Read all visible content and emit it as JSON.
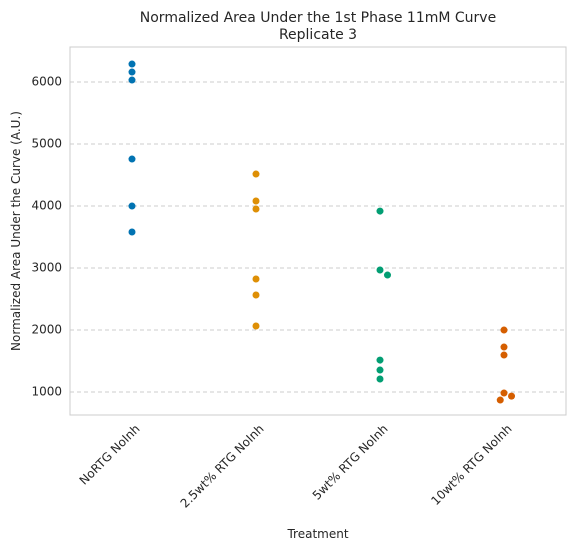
{
  "chart_data": {
    "type": "swarm",
    "title": "Normalized Area Under the 1st Phase 11mM Curve",
    "subtitle": "Replicate 3",
    "x_label": "Treatment",
    "y_label": "Normalized Area Under the Curve (A.U.)",
    "categories": [
      "NoRTG NoInh",
      "2.5wt% RTG NoInh",
      "5wt% RTG NoInh",
      "10wt% RTG NoInh"
    ],
    "colors": [
      "#0173b2",
      "#de8f05",
      "#029e73",
      "#d55e00"
    ],
    "values": [
      [
        6290,
        6161,
        6032,
        4758,
        4000,
        3581
      ],
      [
        4516,
        4081,
        3952,
        2823,
        2565,
        2065
      ],
      [
        3919,
        2968,
        2887,
        1516,
        1355,
        1210
      ],
      [
        2000,
        1726,
        1597,
        984,
        935,
        871
      ]
    ],
    "ylim": [
      630,
      6565
    ],
    "yticks": [
      1000,
      2000,
      3000,
      4000,
      5000,
      6000
    ],
    "grid": true
  }
}
